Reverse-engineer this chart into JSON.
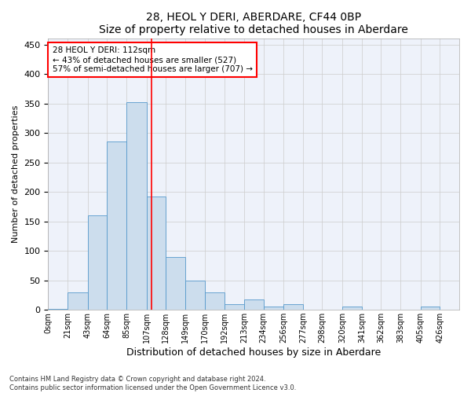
{
  "title": "28, HEOL Y DERI, ABERDARE, CF44 0BP",
  "subtitle": "Size of property relative to detached houses in Aberdare",
  "xlabel": "Distribution of detached houses by size in Aberdare",
  "ylabel": "Number of detached properties",
  "bar_color": "#ccdded",
  "bar_edge_color": "#5599cc",
  "grid_color": "#cccccc",
  "bg_color": "#eef2fa",
  "vline_x": 112,
  "vline_color": "red",
  "annotation_text": "28 HEOL Y DERI: 112sqm\n← 43% of detached houses are smaller (527)\n57% of semi-detached houses are larger (707) →",
  "annotation_box_color": "white",
  "annotation_box_edge": "red",
  "footer": "Contains HM Land Registry data © Crown copyright and database right 2024.\nContains public sector information licensed under the Open Government Licence v3.0.",
  "bin_edges": [
    0,
    21,
    43,
    64,
    85,
    107,
    128,
    149,
    170,
    192,
    213,
    234,
    256,
    277,
    298,
    320,
    341,
    362,
    383,
    405,
    426,
    447
  ],
  "bin_labels": [
    "0sqm",
    "21sqm",
    "43sqm",
    "64sqm",
    "85sqm",
    "107sqm",
    "128sqm",
    "149sqm",
    "170sqm",
    "192sqm",
    "213sqm",
    "234sqm",
    "256sqm",
    "277sqm",
    "298sqm",
    "320sqm",
    "341sqm",
    "362sqm",
    "383sqm",
    "405sqm",
    "426sqm"
  ],
  "bar_heights": [
    2,
    30,
    160,
    285,
    352,
    192,
    90,
    50,
    30,
    10,
    17,
    5,
    9,
    0,
    0,
    5,
    0,
    0,
    0,
    5,
    0
  ],
  "ylim": [
    0,
    460
  ],
  "yticks": [
    0,
    50,
    100,
    150,
    200,
    250,
    300,
    350,
    400,
    450
  ]
}
